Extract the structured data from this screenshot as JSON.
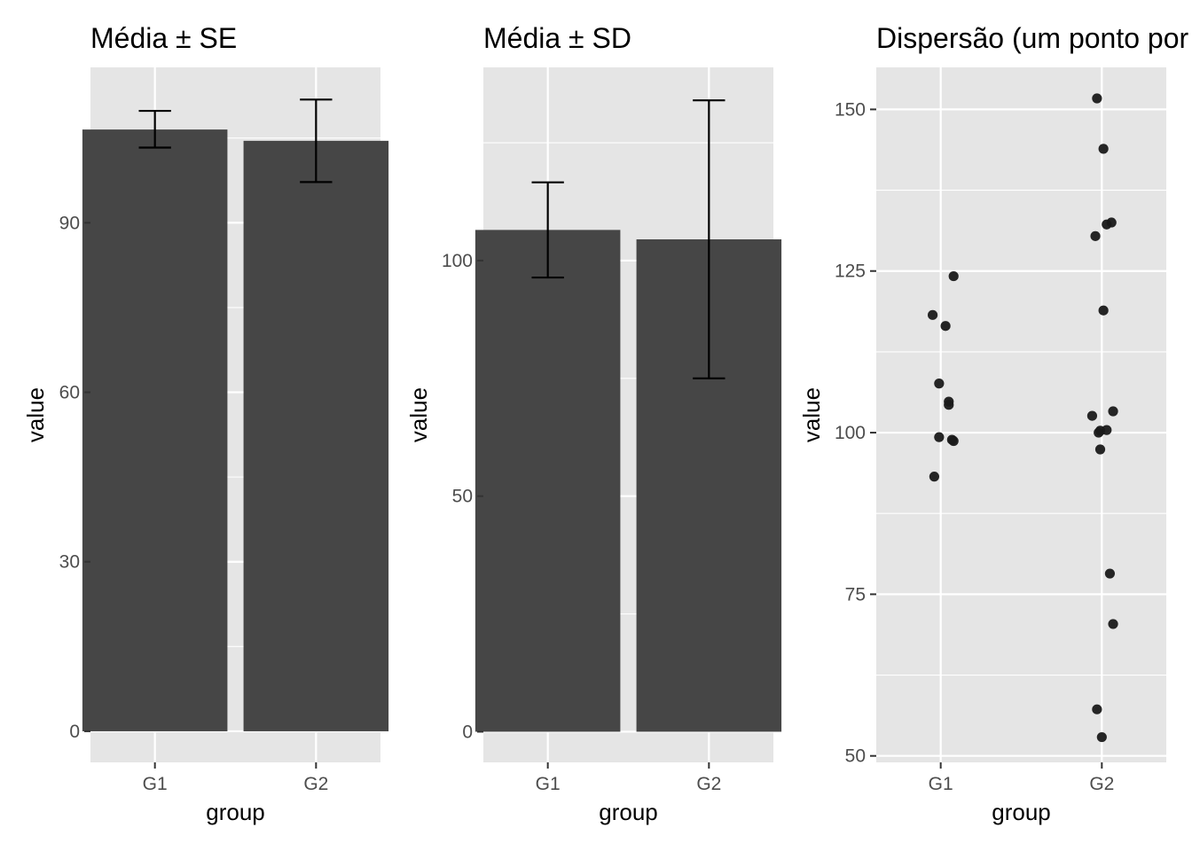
{
  "colors": {
    "panel_bg": "#e5e5e5",
    "grid": "#ffffff",
    "bar": "#464646",
    "errorbar": "#000000",
    "point": "#1a1a1a",
    "tick_text": "#4d4d4d"
  },
  "chart_data": [
    {
      "type": "bar",
      "title": "Média ± SE",
      "xlabel": "group",
      "ylabel": "value",
      "categories": [
        "G1",
        "G2"
      ],
      "values": [
        106.5,
        104.5
      ],
      "error_low": [
        103.3,
        97.2
      ],
      "error_high": [
        109.8,
        111.8
      ],
      "ylim": [
        -5.5,
        117.5
      ],
      "yticks": [
        0,
        30,
        60,
        90
      ],
      "ytick_labels": [
        "0",
        "30",
        "60",
        "90"
      ],
      "minor_yticks": [
        15,
        45,
        75,
        105
      ]
    },
    {
      "type": "bar",
      "title": "Média ± SD",
      "xlabel": "group",
      "ylabel": "value",
      "categories": [
        "G1",
        "G2"
      ],
      "values": [
        106.5,
        104.5
      ],
      "error_low": [
        96.4,
        75.0
      ],
      "error_high": [
        116.6,
        134.0
      ],
      "ylim": [
        -6.5,
        141.0
      ],
      "yticks": [
        0,
        50,
        100
      ],
      "ytick_labels": [
        "0",
        "50",
        "100"
      ],
      "minor_yticks": [
        25,
        75,
        125
      ]
    },
    {
      "type": "scatter",
      "title": "Dispersão (um ponto por observação)",
      "xlabel": "group",
      "ylabel": "value",
      "categories": [
        "G1",
        "G2"
      ],
      "points": [
        {
          "group": "G1",
          "jitter": -0.05,
          "value": 118.2
        },
        {
          "group": "G1",
          "jitter": 0.03,
          "value": 116.5
        },
        {
          "group": "G1",
          "jitter": 0.08,
          "value": 124.2
        },
        {
          "group": "G1",
          "jitter": -0.01,
          "value": 107.6
        },
        {
          "group": "G1",
          "jitter": 0.05,
          "value": 104.8
        },
        {
          "group": "G1",
          "jitter": 0.05,
          "value": 104.3
        },
        {
          "group": "G1",
          "jitter": -0.01,
          "value": 99.3
        },
        {
          "group": "G1",
          "jitter": 0.07,
          "value": 98.9
        },
        {
          "group": "G1",
          "jitter": 0.08,
          "value": 98.7
        },
        {
          "group": "G1",
          "jitter": -0.04,
          "value": 93.2
        },
        {
          "group": "G2",
          "jitter": -0.03,
          "value": 151.7
        },
        {
          "group": "G2",
          "jitter": 0.01,
          "value": 143.9
        },
        {
          "group": "G2",
          "jitter": 0.06,
          "value": 132.5
        },
        {
          "group": "G2",
          "jitter": 0.03,
          "value": 132.2
        },
        {
          "group": "G2",
          "jitter": -0.04,
          "value": 130.4
        },
        {
          "group": "G2",
          "jitter": 0.01,
          "value": 118.9
        },
        {
          "group": "G2",
          "jitter": 0.07,
          "value": 103.3
        },
        {
          "group": "G2",
          "jitter": -0.06,
          "value": 102.6
        },
        {
          "group": "G2",
          "jitter": 0.03,
          "value": 100.4
        },
        {
          "group": "G2",
          "jitter": -0.01,
          "value": 100.3
        },
        {
          "group": "G2",
          "jitter": -0.02,
          "value": 100.0
        },
        {
          "group": "G2",
          "jitter": -0.01,
          "value": 97.4
        },
        {
          "group": "G2",
          "jitter": 0.05,
          "value": 78.2
        },
        {
          "group": "G2",
          "jitter": 0.07,
          "value": 70.4
        },
        {
          "group": "G2",
          "jitter": -0.03,
          "value": 57.2
        },
        {
          "group": "G2",
          "jitter": 0.0,
          "value": 52.9
        }
      ],
      "ylim": [
        49.0,
        156.5
      ],
      "yticks": [
        50,
        75,
        100,
        125,
        150
      ],
      "ytick_labels": [
        "50",
        "75",
        "100",
        "125",
        "150"
      ],
      "minor_yticks": [
        62.5,
        87.5,
        112.5,
        137.5
      ]
    }
  ]
}
